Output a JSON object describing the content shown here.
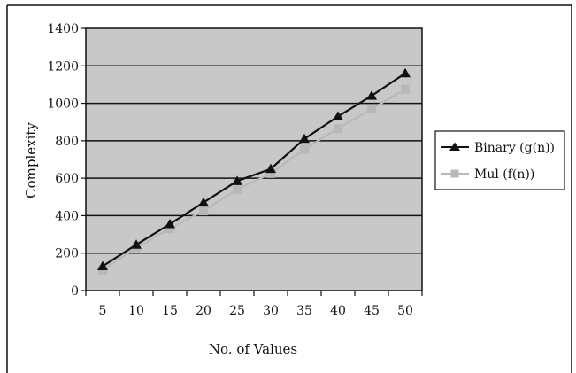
{
  "chart_data": {
    "type": "line",
    "title": "",
    "xlabel": "No. of Values",
    "ylabel": "Complexity",
    "categories": [
      "5",
      "10",
      "15",
      "20",
      "25",
      "30",
      "35",
      "40",
      "45",
      "50"
    ],
    "ylim": [
      0,
      1400
    ],
    "yticks": [
      "0",
      "200",
      "400",
      "600",
      "800",
      "1000",
      "1200",
      "1400"
    ],
    "grid": true,
    "legend_position": "right",
    "series": [
      {
        "name": "Binary (g(n))",
        "values": [
          130,
          245,
          355,
          470,
          585,
          650,
          810,
          930,
          1040,
          1160
        ],
        "color": "#111111",
        "marker": "triangle"
      },
      {
        "name": "Mul (f(n))",
        "values": [
          110,
          230,
          330,
          425,
          540,
          625,
          755,
          865,
          970,
          1075
        ],
        "color": "#b8b8b8",
        "marker": "square"
      }
    ],
    "colors": {
      "plot_background": "#c8c8c8",
      "gridline": "#111111"
    }
  }
}
